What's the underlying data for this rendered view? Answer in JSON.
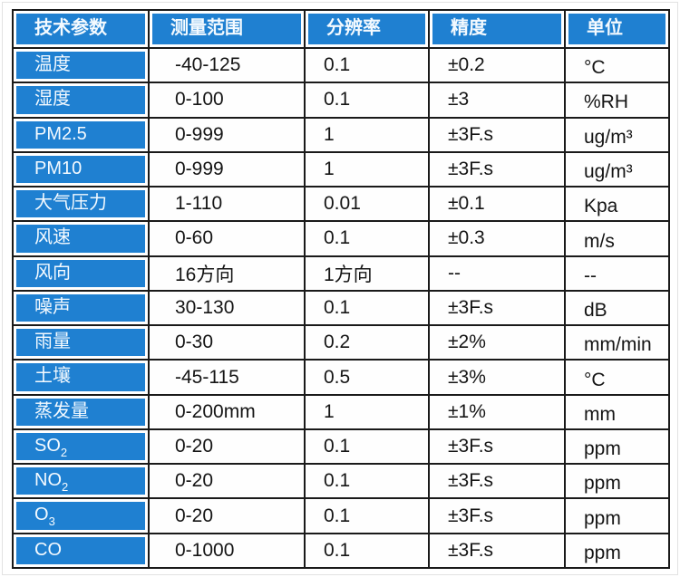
{
  "colors": {
    "header_blue": "#1f80d1",
    "grid_border": "#1a1a1a",
    "value_text": "#151515",
    "blue_cell_text": "#f4faff"
  },
  "table": {
    "headers": [
      "技术参数",
      "测量范围",
      "分辨率",
      "精度",
      "单位"
    ],
    "rows": [
      {
        "param": "温度",
        "param_sub": "",
        "range": "-40-125",
        "resolution": "0.1",
        "accuracy": "±0.2",
        "unit": "°C"
      },
      {
        "param": "湿度",
        "param_sub": "",
        "range": "0-100",
        "resolution": "0.1",
        "accuracy": "±3",
        "unit": "%RH"
      },
      {
        "param": "PM2.5",
        "param_sub": "",
        "range": "0-999",
        "resolution": "1",
        "accuracy": "±3F.s",
        "unit": "ug/m³"
      },
      {
        "param": "PM10",
        "param_sub": "",
        "range": "0-999",
        "resolution": "1",
        "accuracy": "±3F.s",
        "unit": "ug/m³"
      },
      {
        "param": "大气压力",
        "param_sub": "",
        "range": "1-110",
        "resolution": "0.01",
        "accuracy": "±0.1",
        "unit": "Kpa"
      },
      {
        "param": "风速",
        "param_sub": "",
        "range": "0-60",
        "resolution": "0.1",
        "accuracy": "±0.3",
        "unit": "m/s"
      },
      {
        "param": "风向",
        "param_sub": "",
        "range": "16方向",
        "resolution": "1方向",
        "accuracy": "--",
        "unit": "--"
      },
      {
        "param": "噪声",
        "param_sub": "",
        "range": "30-130",
        "resolution": "0.1",
        "accuracy": "±3F.s",
        "unit": "dB"
      },
      {
        "param": "雨量",
        "param_sub": "",
        "range": "0-30",
        "resolution": "0.2",
        "accuracy": "±2%",
        "unit": "mm/min"
      },
      {
        "param": "土壤",
        "param_sub": "",
        "range": "-45-115",
        "resolution": "0.5",
        "accuracy": "±3%",
        "unit": "°C"
      },
      {
        "param": "蒸发量",
        "param_sub": "",
        "range": "0-200mm",
        "resolution": "1",
        "accuracy": "±1%",
        "unit": "mm"
      },
      {
        "param": "SO",
        "param_sub": "2",
        "range": "0-20",
        "resolution": "0.1",
        "accuracy": "±3F.s",
        "unit": "ppm"
      },
      {
        "param": "NO",
        "param_sub": "2",
        "range": "0-20",
        "resolution": "0.1",
        "accuracy": "±3F.s",
        "unit": "ppm"
      },
      {
        "param": "O",
        "param_sub": "3",
        "range": "0-20",
        "resolution": "0.1",
        "accuracy": "±3F.s",
        "unit": "ppm"
      },
      {
        "param": "CO",
        "param_sub": "",
        "range": "0-1000",
        "resolution": "0.1",
        "accuracy": "±3F.s",
        "unit": "ppm"
      }
    ]
  }
}
